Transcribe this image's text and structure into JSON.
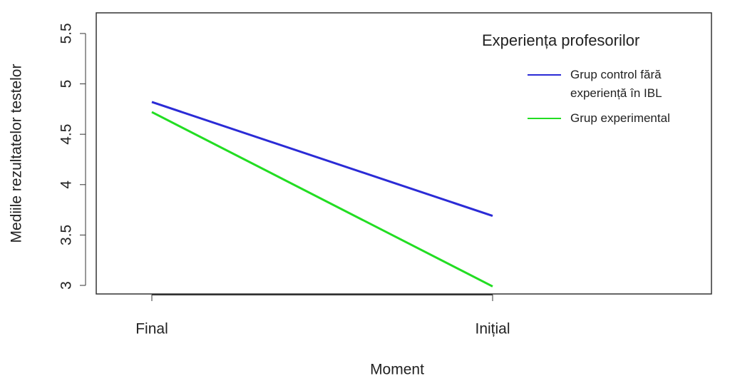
{
  "chart_data": {
    "type": "line",
    "xlabel": "Moment",
    "ylabel": "Mediile rezultatelor testelor",
    "categories": [
      "Final",
      "Inițial"
    ],
    "series": [
      {
        "name": "Grup control fără experiență în IBL",
        "color": "#2b2bd6",
        "values": [
          4.82,
          3.69
        ]
      },
      {
        "name": "Grup experimental",
        "color": "#22dd22",
        "values": [
          4.72,
          2.99
        ]
      }
    ],
    "legend_title": "Experiența profesorilor",
    "ylim": [
      2.915,
      5.705
    ],
    "yticks": [
      3.0,
      3.5,
      4.0,
      4.5,
      5.0,
      5.5
    ],
    "legend_position": "top-right"
  }
}
